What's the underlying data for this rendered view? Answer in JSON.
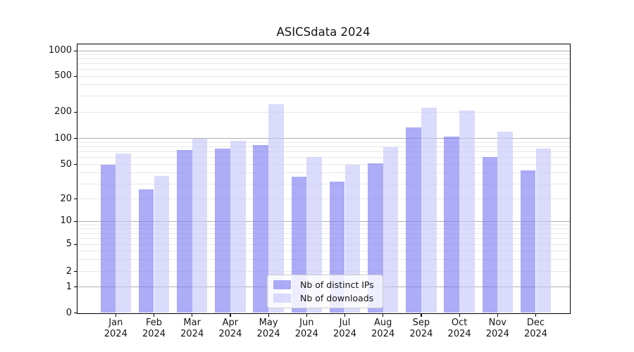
{
  "title": "ASICSdata 2024",
  "chart_data": {
    "type": "bar",
    "title": "ASICSdata 2024",
    "x_categories": [
      "Jan",
      "Feb",
      "Mar",
      "Apr",
      "May",
      "Jun",
      "Jul",
      "Aug",
      "Sep",
      "Oct",
      "Nov",
      "Dec"
    ],
    "x_year_label": "2024",
    "series": [
      {
        "name": "Nb of distinct IPs",
        "color": "rgba(124,124,242,0.63)",
        "values": [
          50,
          26,
          74,
          76,
          84,
          36,
          32,
          52,
          134,
          106,
          61,
          43
        ]
      },
      {
        "name": "Nb of downloads",
        "color": "rgba(198,198,250,0.63)",
        "values": [
          67,
          37,
          100,
          94,
          245,
          61,
          50,
          80,
          225,
          208,
          119,
          76
        ]
      }
    ],
    "y_axis": {
      "scale": "symlog",
      "tick_labels": [
        "0",
        "1",
        "2",
        "5",
        "10",
        "20",
        "50",
        "100",
        "200",
        "500",
        "1000"
      ],
      "tick_values": [
        0,
        1,
        2,
        5,
        10,
        20,
        50,
        100,
        200,
        500,
        1000
      ],
      "ylim": [
        0,
        1100
      ]
    },
    "grid": {
      "visible": true,
      "major_color": "#b0b0b0",
      "minor_color": "#e8e8e8"
    },
    "legend": {
      "position": "lower-center",
      "entries": [
        "Nb of distinct IPs",
        "Nb of downloads"
      ]
    }
  }
}
